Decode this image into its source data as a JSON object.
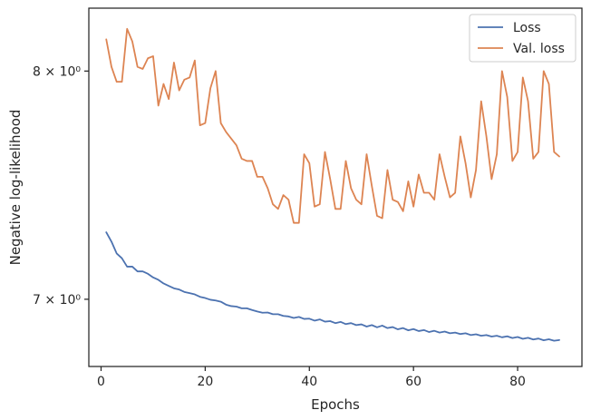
{
  "chart_data": {
    "type": "line",
    "xlabel": "Epochs",
    "ylabel": "Negative log-likelihood",
    "yscale": "log",
    "xlim": [
      -2.35,
      92.35
    ],
    "ylim": [
      6.73,
      8.3
    ],
    "xticks": [
      {
        "value": 0,
        "label": "0"
      },
      {
        "value": 20,
        "label": "20"
      },
      {
        "value": 40,
        "label": "40"
      },
      {
        "value": 60,
        "label": "60"
      },
      {
        "value": 80,
        "label": "80"
      }
    ],
    "yticks": [
      {
        "value": 7,
        "label": "7 × 10⁰"
      },
      {
        "value": 8,
        "label": "8 × 10⁰"
      }
    ],
    "legend": {
      "position": "top-right"
    },
    "grid": false,
    "x": [
      1,
      2,
      3,
      4,
      5,
      6,
      7,
      8,
      9,
      10,
      11,
      12,
      13,
      14,
      15,
      16,
      17,
      18,
      19,
      20,
      21,
      22,
      23,
      24,
      25,
      26,
      27,
      28,
      29,
      30,
      31,
      32,
      33,
      34,
      35,
      36,
      37,
      38,
      39,
      40,
      41,
      42,
      43,
      44,
      45,
      46,
      47,
      48,
      49,
      50,
      51,
      52,
      53,
      54,
      55,
      56,
      57,
      58,
      59,
      60,
      61,
      62,
      63,
      64,
      65,
      66,
      67,
      68,
      69,
      70,
      71,
      72,
      73,
      74,
      75,
      76,
      77,
      78,
      79,
      80,
      81,
      82,
      83,
      84,
      85,
      86,
      87,
      88
    ],
    "series": [
      {
        "name": "Loss",
        "color": "#4c72b0",
        "values": [
          7.28,
          7.24,
          7.19,
          7.17,
          7.135,
          7.135,
          7.115,
          7.115,
          7.105,
          7.09,
          7.08,
          7.065,
          7.055,
          7.045,
          7.04,
          7.03,
          7.025,
          7.02,
          7.01,
          7.005,
          6.998,
          6.995,
          6.99,
          6.978,
          6.972,
          6.97,
          6.963,
          6.963,
          6.956,
          6.95,
          6.945,
          6.946,
          6.939,
          6.939,
          6.932,
          6.93,
          6.924,
          6.928,
          6.92,
          6.921,
          6.913,
          6.918,
          6.909,
          6.911,
          6.903,
          6.908,
          6.899,
          6.903,
          6.895,
          6.898,
          6.889,
          6.895,
          6.886,
          6.893,
          6.883,
          6.887,
          6.878,
          6.883,
          6.874,
          6.879,
          6.871,
          6.875,
          6.867,
          6.872,
          6.865,
          6.869,
          6.862,
          6.865,
          6.859,
          6.862,
          6.855,
          6.858,
          6.852,
          6.855,
          6.849,
          6.852,
          6.846,
          6.85,
          6.843,
          6.847,
          6.84,
          6.844,
          6.837,
          6.841,
          6.834,
          6.838,
          6.832,
          6.835
        ]
      },
      {
        "name": "Val. loss",
        "color": "#dd8452",
        "values": [
          8.15,
          8.02,
          7.95,
          7.95,
          8.2,
          8.14,
          8.02,
          8.01,
          8.06,
          8.07,
          7.84,
          7.94,
          7.87,
          8.04,
          7.91,
          7.96,
          7.97,
          8.05,
          7.75,
          7.76,
          7.92,
          8.0,
          7.76,
          7.72,
          7.69,
          7.66,
          7.6,
          7.59,
          7.59,
          7.52,
          7.52,
          7.47,
          7.4,
          7.38,
          7.44,
          7.42,
          7.32,
          7.32,
          7.62,
          7.58,
          7.39,
          7.4,
          7.63,
          7.51,
          7.38,
          7.38,
          7.59,
          7.47,
          7.42,
          7.4,
          7.62,
          7.48,
          7.35,
          7.34,
          7.55,
          7.42,
          7.41,
          7.37,
          7.5,
          7.39,
          7.53,
          7.45,
          7.45,
          7.42,
          7.62,
          7.52,
          7.43,
          7.45,
          7.7,
          7.58,
          7.43,
          7.55,
          7.86,
          7.7,
          7.51,
          7.62,
          8.0,
          7.88,
          7.59,
          7.63,
          7.97,
          7.86,
          7.6,
          7.63,
          8.0,
          7.94,
          7.63,
          7.61
        ]
      }
    ]
  }
}
